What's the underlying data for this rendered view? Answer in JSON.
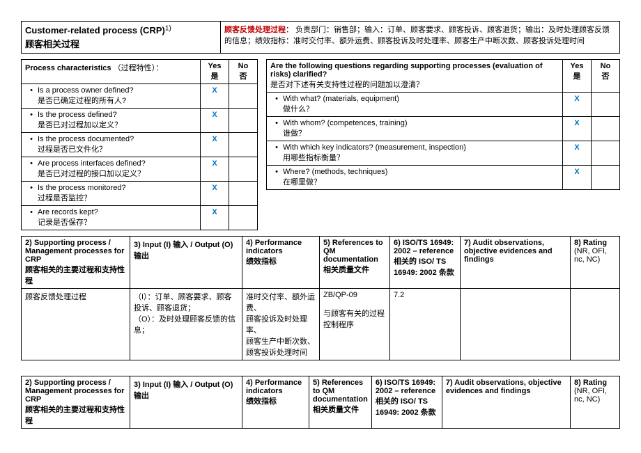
{
  "header": {
    "title_en": "Customer-related process (CRP)",
    "title_sup": "1)",
    "title_cn": "顾客相关过程",
    "desc_label": "顾客反馈处理过程",
    "desc_colon": "：",
    "desc_body": "  负责部门：销售部；输入：订单、顾客要求、顾客投诉、顾客退货；输出：及时处理顾客反馈的信息；绩效指标：准时交付率、额外运费、顾客投诉及时处理率、顾客生产中断次数、顾客投诉处理时间"
  },
  "left_block": {
    "heading_en": "Process characteristics",
    "heading_cn": "（过程特性）：",
    "yes_en": "Yes",
    "yes_cn": "是",
    "no_en": "No",
    "no_cn": "否",
    "rows": [
      {
        "en": "Is a process owner defined?",
        "cn": "是否已确定过程的所有人?",
        "yes": "X"
      },
      {
        "en": "Is the process defined?",
        "cn": "是否已对过程加以定义？",
        "yes": "X"
      },
      {
        "en": "Is the process documented?",
        "cn": "过程是否已文件化？",
        "yes": "X"
      },
      {
        "en": "Are process interfaces defined?",
        "cn": "是否已对过程的接口加以定义？",
        "yes": "X"
      },
      {
        "en": "Is the process monitored?",
        "cn": "过程是否监控？",
        "yes": "X"
      },
      {
        "en": "Are records kept?",
        "cn": "记录是否保存？",
        "yes": "X"
      }
    ]
  },
  "right_block": {
    "heading_en": "Are the following questions regarding supporting processes (evaluation of risks) clarified?",
    "heading_cn": "是否对下述有关支持性过程的问题加以澄清？",
    "yes_en": "Yes",
    "yes_cn": "是",
    "no_en": "No",
    "no_cn": "否",
    "rows": [
      {
        "en": "With what? (materials, equipment)",
        "cn": "做什么？",
        "yes": "X"
      },
      {
        "en": "With whom? (competences, training)",
        "cn": "谁做？",
        "yes": "X"
      },
      {
        "en": "With which key indicators? (measurement, inspection)",
        "cn": "用哪些指标衡量？",
        "yes": "X"
      },
      {
        "en": "Where? (methods, techniques)",
        "cn": "在哪里做？",
        "yes": "X"
      }
    ]
  },
  "mid_table": {
    "headers": {
      "c2": "2) Supporting process / Management processes for CRP",
      "c2_cn": "顾客相关的主要过程和支持性程",
      "c3": "3) Input (I) 输入 / Output (O)",
      "c3_cn": "输出",
      "c4": "4) Performance indicators",
      "c4_cn": "绩效指标",
      "c5": "5) References to QM documentation",
      "c5_cn": "相关质量文件",
      "c6": "6) ISO/TS 16949: 2002 – reference",
      "c6_cn": "相关的 ISO/ TS 16949: 2002 条款",
      "c7": "7) Audit observations, objective evidences and findings",
      "c8": "8) Rating",
      "c8_sub": "(NR, OFI, nc, NC)"
    },
    "row": {
      "c2": "顾客反馈处理过程",
      "c3": "（I）：订单、顾客要求、顾客投诉、顾客退货；\n（O）：及时处理顾客反馈的信息；",
      "c4": "准时交付率、额外运费、\n顾客投诉及时处理率、\n顾客生产中断次数、\n顾客投诉处理时间",
      "c5": "ZB/QP-09\n\n与顾客有关的过程控制程序",
      "c6": "7.2",
      "c7": "",
      "c8": ""
    }
  },
  "bottom_table": {
    "headers": {
      "c2": "2) Supporting process / Management processes for CRP",
      "c2_cn": "顾客相关的主要过程和支持性程",
      "c3": "3) Input (I) 输入 / Output (O)",
      "c3_cn": "输出",
      "c4": "4) Performance indicators",
      "c4_cn": "绩效指标",
      "c5": "5) References to QM documentation",
      "c5_cn": "相关质量文件",
      "c6": "6) ISO/TS 16949: 2002 – reference",
      "c6_cn": "相关的 ISO/ TS 16949: 2002 条款",
      "c7": "7) Audit observations, objective evidences and findings",
      "c8": "8) Rating",
      "c8_sub": "(NR, OFI, nc, NC)"
    }
  }
}
